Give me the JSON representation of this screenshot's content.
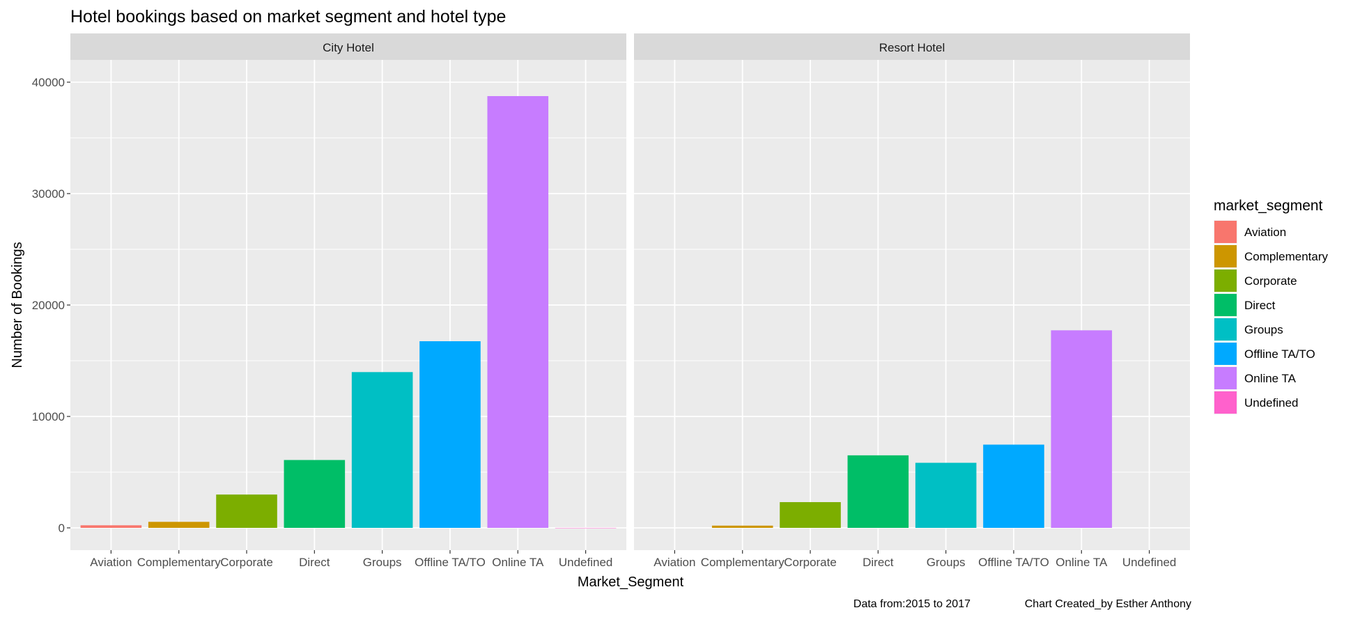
{
  "chart_data": {
    "type": "bar",
    "title": "Hotel bookings based on market segment and hotel type",
    "xlabel": "Market_Segment",
    "ylabel": "Number of Bookings",
    "ylim": [
      -2000,
      42000
    ],
    "yticks": [
      0,
      10000,
      20000,
      30000,
      40000
    ],
    "grid": true,
    "categories": [
      "Aviation",
      "Complementary",
      "Corporate",
      "Direct",
      "Groups",
      "Offline TA/TO",
      "Online TA",
      "Undefined"
    ],
    "colors": [
      "#F8766D",
      "#CD9600",
      "#7CAE00",
      "#00BE67",
      "#00BFC4",
      "#00A9FF",
      "#C77CFF",
      "#FF61CC"
    ],
    "facets": [
      {
        "name": "City Hotel",
        "values": [
          230,
          540,
          2990,
          6090,
          13980,
          16750,
          38750,
          2
        ]
      },
      {
        "name": "Resort Hotel",
        "values": [
          0,
          200,
          2310,
          6510,
          5840,
          7470,
          17730,
          0
        ]
      }
    ],
    "legend": {
      "title": "market_segment",
      "position": "right",
      "items": [
        "Aviation",
        "Complementary",
        "Corporate",
        "Direct",
        "Groups",
        "Offline TA/TO",
        "Online TA",
        "Undefined"
      ]
    },
    "caption": {
      "left": "Data from:2015 to 2017",
      "right": "Chart Created_by Esther Anthony"
    }
  }
}
